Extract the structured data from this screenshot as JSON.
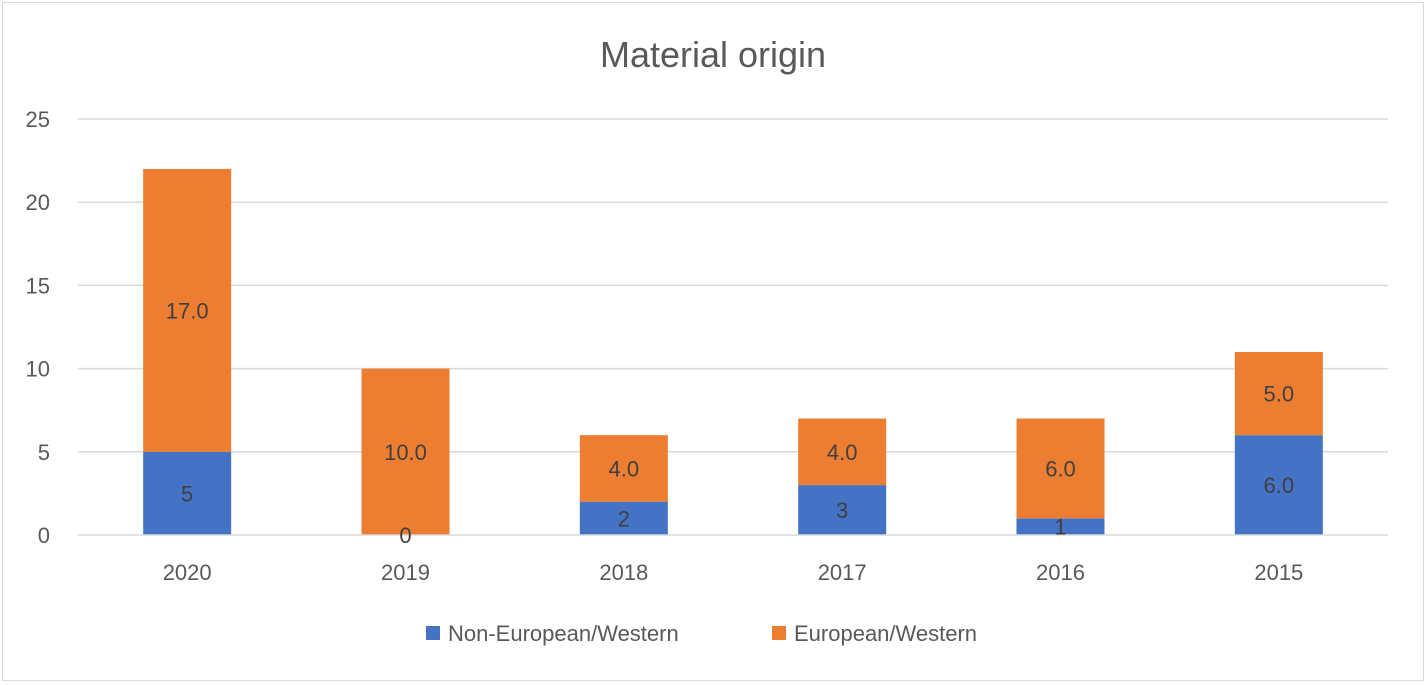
{
  "chart_data": {
    "type": "bar",
    "stacked": true,
    "title": "Material origin",
    "xlabel": "",
    "ylabel": "",
    "categories": [
      "2020",
      "2019",
      "2018",
      "2017",
      "2016",
      "2015"
    ],
    "ylim": [
      0,
      25
    ],
    "yticks": [
      0,
      5,
      10,
      15,
      20,
      25
    ],
    "grid": true,
    "legend_position": "bottom",
    "series": [
      {
        "name": "Non-European/Western",
        "color": "#4472c4",
        "values": [
          5,
          0,
          2,
          3,
          1,
          6
        ],
        "labels": [
          "5",
          "0",
          "2",
          "3",
          "1",
          "6.0"
        ]
      },
      {
        "name": "European/Western",
        "color": "#ed7d31",
        "values": [
          17,
          10,
          4,
          4,
          6,
          5
        ],
        "labels": [
          "17.0",
          "10.0",
          "4.0",
          "4.0",
          "6.0",
          "5.0"
        ]
      }
    ]
  }
}
